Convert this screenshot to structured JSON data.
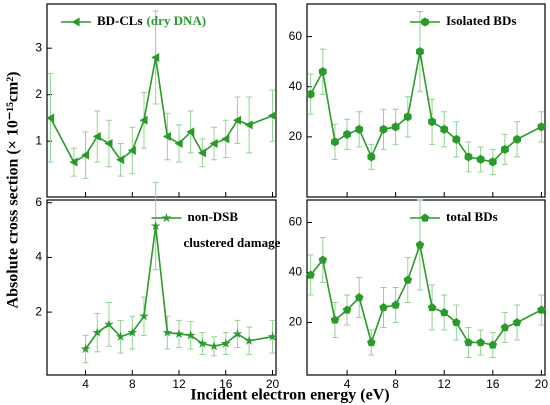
{
  "xlabel": "Incident electron energy (eV)",
  "ylabel": "Absolute cross section (× 10⁻¹⁵cm²)",
  "chart_data": [
    {
      "type": "line",
      "marker": "triangle-left",
      "legend": "upper left",
      "legend_note": "(dry DNA)",
      "note_color": "#2a9a2a",
      "xlim": [
        0.7,
        20.3
      ],
      "xticks": [
        4,
        8,
        12,
        16,
        20
      ],
      "ylim": [
        -0.2,
        3.95
      ],
      "yticks": [
        1,
        2,
        3
      ],
      "series": [
        {
          "name": "BD-CLs",
          "color": "#2a9a2a",
          "error_color": "#93d393",
          "x": [
            1,
            3,
            4,
            5,
            6,
            7,
            8,
            9,
            10,
            11,
            12,
            13,
            14,
            15,
            16,
            17,
            18,
            20
          ],
          "values": [
            1.5,
            0.55,
            0.7,
            1.1,
            0.95,
            0.6,
            0.8,
            1.45,
            2.8,
            1.1,
            0.95,
            1.2,
            0.75,
            0.95,
            1.05,
            1.45,
            1.35,
            1.55
          ],
          "errors": [
            0.95,
            0.3,
            0.5,
            0.55,
            0.5,
            0.35,
            0.5,
            0.6,
            1.0,
            0.5,
            0.4,
            0.45,
            0.3,
            0.35,
            0.4,
            0.5,
            0.6,
            0.55
          ]
        }
      ]
    },
    {
      "type": "line",
      "marker": "hexagon",
      "legend": "upper right",
      "xlim": [
        0.7,
        20.3
      ],
      "xticks": [
        4,
        8,
        12,
        16,
        20
      ],
      "ylim": [
        -4,
        73
      ],
      "yticks": [
        20,
        40,
        60
      ],
      "series": [
        {
          "name": "Isolated BDs",
          "color": "#2a9a2a",
          "error_color": "#93d393",
          "x": [
            1,
            2,
            3,
            4,
            5,
            6,
            7,
            8,
            9,
            10,
            11,
            12,
            13,
            14,
            15,
            16,
            17,
            18,
            20
          ],
          "values": [
            37,
            46,
            18,
            21,
            23,
            12,
            23,
            24,
            28,
            54,
            26,
            23,
            19,
            12,
            11,
            10,
            15,
            19,
            24
          ],
          "errors": [
            8,
            9,
            7,
            6,
            7,
            5,
            8,
            7,
            8,
            16,
            9,
            7,
            7,
            6,
            5,
            5,
            6,
            7,
            6
          ]
        }
      ]
    },
    {
      "type": "line",
      "marker": "star",
      "legend": "upper center",
      "annotation": "clustered damage",
      "xlim": [
        0.7,
        20.3
      ],
      "xticks": [
        4,
        8,
        12,
        16,
        20
      ],
      "ylim": [
        -0.3,
        6.1
      ],
      "yticks": [
        2,
        4,
        6
      ],
      "series": [
        {
          "name": "non-DSB",
          "color": "#2a9a2a",
          "error_color": "#93d393",
          "x": [
            4,
            5,
            6,
            7,
            8,
            9,
            10,
            11,
            12,
            13,
            14,
            15,
            16,
            17,
            18,
            20
          ],
          "values": [
            0.65,
            1.25,
            1.55,
            1.1,
            1.25,
            1.85,
            5.15,
            1.25,
            1.2,
            1.15,
            0.85,
            0.75,
            0.85,
            1.2,
            0.95,
            1.1
          ],
          "errors": [
            0.5,
            0.7,
            0.8,
            0.6,
            0.6,
            0.7,
            1.6,
            0.6,
            0.5,
            0.5,
            0.4,
            0.35,
            0.4,
            0.5,
            0.5,
            0.6
          ]
        }
      ]
    },
    {
      "type": "line",
      "marker": "pentagon",
      "legend": "upper right",
      "xlim": [
        0.7,
        20.3
      ],
      "xticks": [
        4,
        8,
        12,
        16,
        20
      ],
      "ylim": [
        -1,
        69
      ],
      "yticks": [
        20,
        40,
        60
      ],
      "series": [
        {
          "name": "total BDs",
          "color": "#2a9a2a",
          "error_color": "#93d393",
          "x": [
            1,
            2,
            3,
            4,
            5,
            6,
            7,
            8,
            9,
            10,
            11,
            12,
            13,
            14,
            15,
            16,
            17,
            18,
            20
          ],
          "values": [
            39,
            45,
            21,
            25,
            30,
            12,
            26,
            27,
            37,
            51,
            26,
            24,
            20,
            12,
            12,
            11,
            18,
            20,
            25
          ],
          "errors": [
            8,
            9,
            7,
            6,
            8,
            5,
            8,
            7,
            9,
            18,
            9,
            7,
            7,
            6,
            5,
            5,
            6,
            7,
            6
          ]
        }
      ]
    }
  ]
}
